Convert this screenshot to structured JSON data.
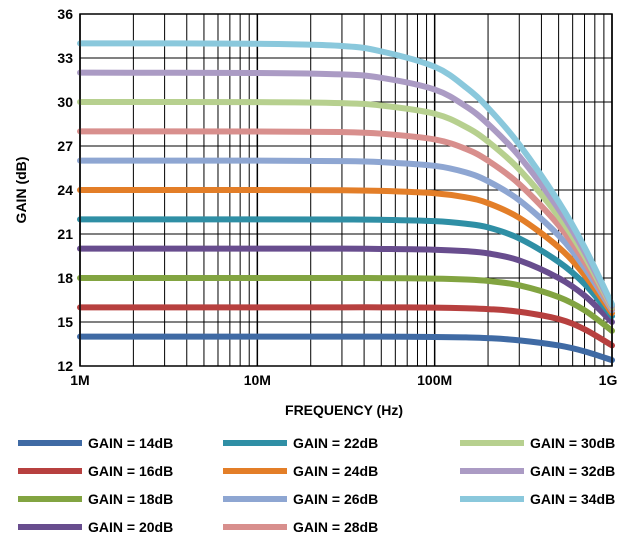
{
  "chart_data": {
    "type": "line",
    "xscale": "log",
    "xlim": [
      1000000,
      1000000000
    ],
    "ylim": [
      12,
      36
    ],
    "xlabel": "FREQUENCY (Hz)",
    "ylabel": "GAIN (dB)",
    "x_ticks": [
      {
        "value": 1000000,
        "label": "1M"
      },
      {
        "value": 10000000,
        "label": "10M"
      },
      {
        "value": 100000000,
        "label": "100M"
      },
      {
        "value": 1000000000,
        "label": "1G"
      }
    ],
    "y_ticks": [
      {
        "value": 12,
        "label": "12"
      },
      {
        "value": 15,
        "label": "15"
      },
      {
        "value": 18,
        "label": "18"
      },
      {
        "value": 21,
        "label": "21"
      },
      {
        "value": 24,
        "label": "24"
      },
      {
        "value": 27,
        "label": "27"
      },
      {
        "value": 30,
        "label": "30"
      },
      {
        "value": 33,
        "label": "33"
      },
      {
        "value": 36,
        "label": "36"
      }
    ],
    "grid": true,
    "legend_position": "bottom",
    "x": [
      1000000,
      10000000,
      30000000,
      50000000,
      100000000,
      150000000,
      200000000,
      300000000,
      500000000,
      700000000,
      1000000000
    ],
    "series": [
      {
        "name": "GAIN = 14dB",
        "color": "#3f6aa4",
        "values": [
          14.0,
          14.0,
          14.0,
          14.0,
          13.98,
          13.95,
          13.9,
          13.75,
          13.4,
          13.0,
          12.4
        ]
      },
      {
        "name": "GAIN = 16dB",
        "color": "#b7403f",
        "values": [
          16.0,
          16.0,
          16.0,
          16.0,
          15.98,
          15.94,
          15.88,
          15.7,
          15.2,
          14.5,
          13.4
        ]
      },
      {
        "name": "GAIN = 18dB",
        "color": "#82a441",
        "values": [
          18.0,
          18.0,
          18.0,
          17.99,
          17.96,
          17.9,
          17.8,
          17.5,
          16.7,
          15.8,
          14.4
        ]
      },
      {
        "name": "GAIN = 20dB",
        "color": "#684d8e",
        "values": [
          20.0,
          20.0,
          20.0,
          19.98,
          19.93,
          19.83,
          19.68,
          19.2,
          18.0,
          16.8,
          15.0
        ]
      },
      {
        "name": "GAIN = 22dB",
        "color": "#2f8fa5",
        "values": [
          22.0,
          22.0,
          21.99,
          21.97,
          21.88,
          21.7,
          21.45,
          20.7,
          19.1,
          17.6,
          15.4
        ]
      },
      {
        "name": "GAIN = 24dB",
        "color": "#e37e28",
        "values": [
          24.0,
          24.0,
          23.98,
          23.94,
          23.78,
          23.5,
          23.1,
          22.1,
          20.1,
          18.2,
          15.6
        ]
      },
      {
        "name": "GAIN = 26dB",
        "color": "#8ea6d2",
        "values": [
          26.0,
          26.0,
          25.97,
          25.9,
          25.65,
          25.2,
          24.6,
          23.3,
          20.9,
          18.7,
          15.8
        ]
      },
      {
        "name": "GAIN = 28dB",
        "color": "#d88f8d",
        "values": [
          28.0,
          27.99,
          27.95,
          27.84,
          27.45,
          26.8,
          26.0,
          24.4,
          21.6,
          19.1,
          15.9
        ]
      },
      {
        "name": "GAIN = 30dB",
        "color": "#b7d08f",
        "values": [
          30.0,
          29.99,
          29.92,
          29.76,
          29.2,
          28.3,
          27.3,
          25.4,
          22.2,
          19.5,
          16.0
        ]
      },
      {
        "name": "GAIN = 32dB",
        "color": "#ab9bc4",
        "values": [
          32.0,
          31.98,
          31.88,
          31.65,
          30.85,
          29.7,
          28.5,
          26.3,
          22.7,
          19.8,
          16.1
        ]
      },
      {
        "name": "GAIN = 34dB",
        "color": "#8ac8dc",
        "values": [
          34.0,
          33.97,
          33.82,
          33.45,
          32.4,
          31.0,
          29.6,
          27.1,
          23.2,
          20.1,
          16.2
        ]
      }
    ]
  }
}
